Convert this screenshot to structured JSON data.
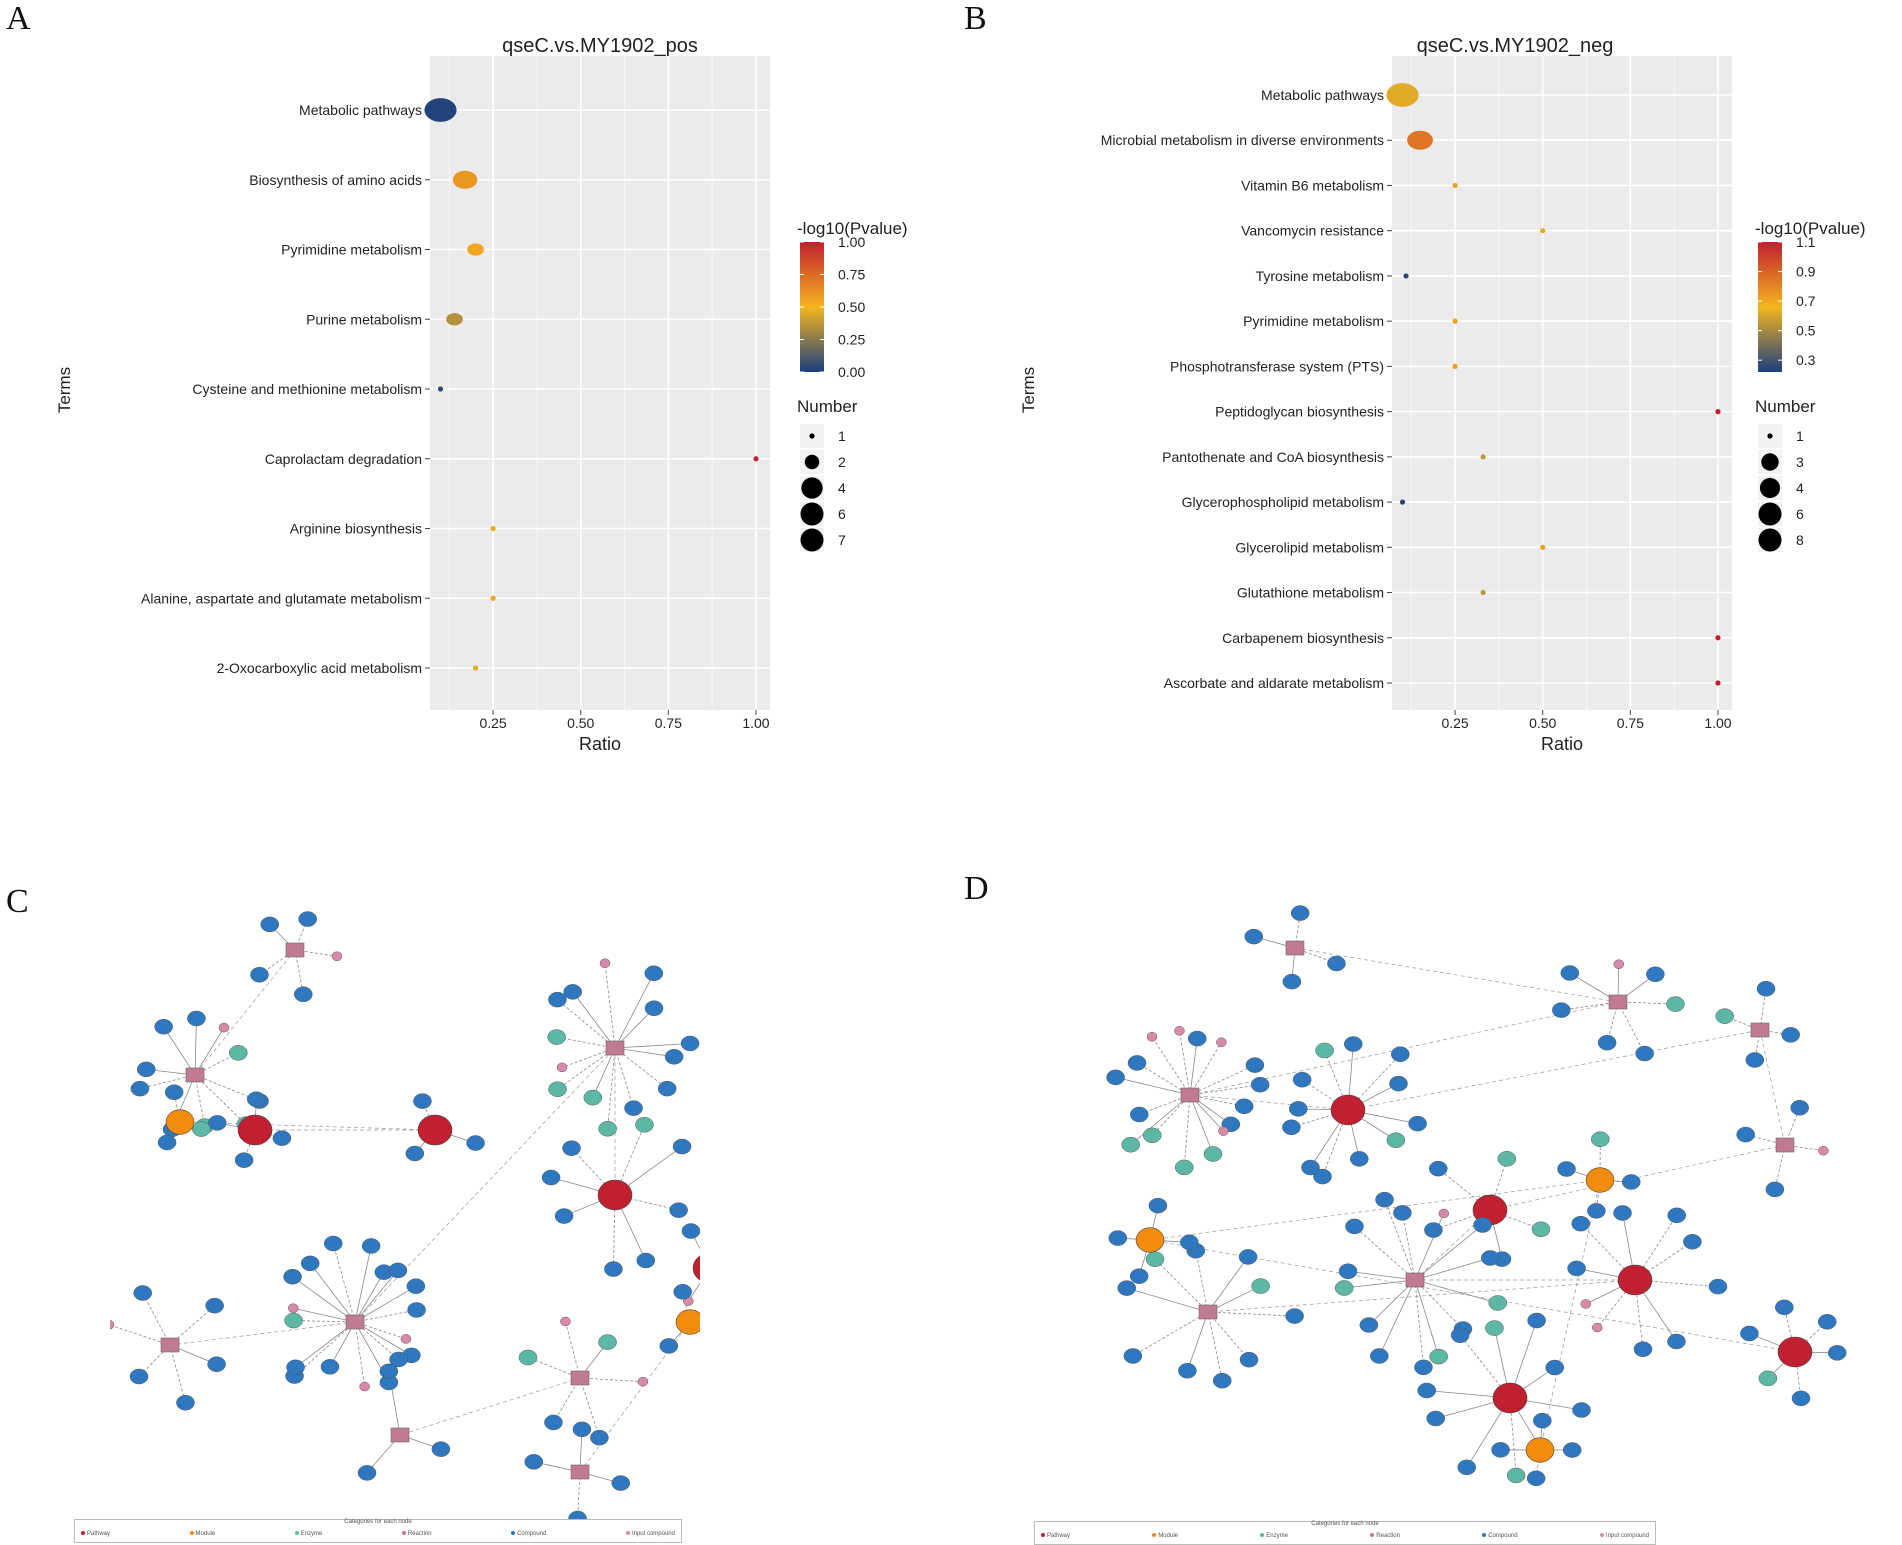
{
  "panels": {
    "A": "A",
    "B": "B",
    "C": "C",
    "D": "D"
  },
  "colors": {
    "low": "#1a3f7f",
    "mid": "#f5b51e",
    "high": "#c0202f",
    "panel_bg": "#ebebeb",
    "grid": "#ffffff"
  },
  "chart_data": [
    {
      "type": "scatter",
      "title": "qseC.vs.MY1902_pos",
      "xlabel": "Ratio",
      "ylabel": "Terms",
      "xlim": [
        0.07,
        1.04
      ],
      "xticks": [
        0.25,
        0.5,
        0.75,
        1.0
      ],
      "xtick_labels": [
        "0.25",
        "0.50",
        "0.75",
        "1.00"
      ],
      "terms": [
        "Metabolic pathways",
        "Biosynthesis of amino acids",
        "Pyrimidine metabolism",
        "Purine metabolism",
        "Cysteine and methionine metabolism",
        "Caprolactam degradation",
        "Arginine biosynthesis",
        "Alanine, aspartate and glutamate metabolism",
        "2-Oxocarboxylic acid metabolism"
      ],
      "ratio": [
        0.1,
        0.17,
        0.2,
        0.14,
        0.1,
        1.0,
        0.25,
        0.25,
        0.2
      ],
      "pvalue": [
        0.02,
        0.6,
        0.55,
        0.35,
        0.05,
        1.0,
        0.55,
        0.55,
        0.55
      ],
      "number": [
        7,
        4,
        2,
        2,
        1,
        1,
        1,
        1,
        1
      ],
      "colorbar": {
        "title": "-log10(Pvalue)",
        "min": 0.0,
        "max": 1.0,
        "ticks": [
          0.0,
          0.25,
          0.5,
          0.75,
          1.0
        ],
        "tick_labels": [
          "0.00",
          "0.25",
          "0.50",
          "0.75",
          "1.00"
        ]
      },
      "size_legend": {
        "title": "Number",
        "values": [
          1,
          2,
          4,
          6,
          7
        ],
        "labels": [
          "1",
          "2",
          "4",
          "6",
          "7"
        ]
      }
    },
    {
      "type": "scatter",
      "title": "qseC.vs.MY1902_neg",
      "xlabel": "Ratio",
      "ylabel": "Terms",
      "xlim": [
        0.07,
        1.04
      ],
      "xticks": [
        0.25,
        0.5,
        0.75,
        1.0
      ],
      "xtick_labels": [
        "0.25",
        "0.50",
        "0.75",
        "1.00"
      ],
      "terms": [
        "Metabolic pathways",
        "Microbial metabolism in diverse environments",
        "Vitamin B6 metabolism",
        "Vancomycin resistance",
        "Tyrosine metabolism",
        "Pyrimidine metabolism",
        "Phosphotransferase system (PTS)",
        "Peptidoglycan biosynthesis",
        "Pantothenate and CoA biosynthesis",
        "Glycerophospholipid metabolism",
        "Glycerolipid metabolism",
        "Glutathione metabolism",
        "Carbapenem biosynthesis",
        "Ascorbate and aldarate metabolism"
      ],
      "ratio": [
        0.1,
        0.15,
        0.25,
        0.5,
        0.11,
        0.25,
        0.25,
        1.0,
        0.33,
        0.1,
        0.5,
        0.33,
        1.0,
        1.0
      ],
      "pvalue": [
        0.62,
        0.85,
        0.72,
        0.72,
        0.25,
        0.72,
        0.72,
        1.1,
        0.55,
        0.25,
        0.72,
        0.55,
        1.1,
        1.1
      ],
      "number": [
        8,
        5,
        1,
        1,
        1,
        1,
        1,
        1,
        1,
        1,
        1,
        1,
        1,
        1
      ],
      "colorbar": {
        "title": "-log10(Pvalue)",
        "min": 0.22,
        "max": 1.1,
        "ticks": [
          0.3,
          0.5,
          0.7,
          0.9,
          1.1
        ],
        "tick_labels": [
          "0.3",
          "0.5",
          "0.7",
          "0.9",
          "1.1"
        ]
      },
      "size_legend": {
        "title": "Number",
        "values": [
          1,
          3,
          4,
          6,
          8
        ],
        "labels": [
          "1",
          "3",
          "4",
          "6",
          "8"
        ]
      }
    }
  ],
  "network_legend": {
    "title": "Categories for each node",
    "C": [
      "Pathway",
      "Module",
      "Enzyme",
      "Reaction",
      "Compound",
      "Input compound"
    ],
    "D": [
      "Pathway",
      "Module",
      "Enzyme",
      "Reaction",
      "Compound",
      "Input compound"
    ]
  }
}
